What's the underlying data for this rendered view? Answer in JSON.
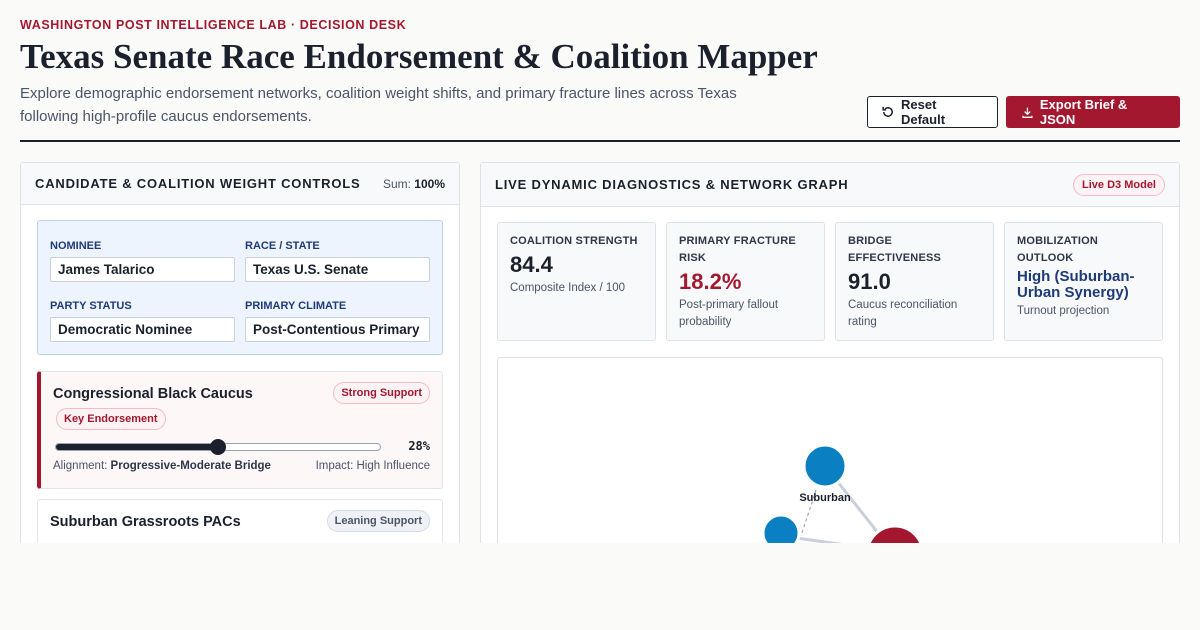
{
  "header": {
    "kicker": "WASHINGTON POST INTELLIGENCE LAB · DECISION DESK",
    "title": "Texas Senate Race Endorsement & Coalition Mapper",
    "subtitle": "Explore demographic endorsement networks, coalition weight shifts, and primary fracture lines across Texas following high-profile caucus endorsements.",
    "reset_label": "Reset Default",
    "export_label": "Export Brief & JSON"
  },
  "controls": {
    "title": "CANDIDATE & COALITION WEIGHT CONTROLS",
    "sum_label": "Sum:",
    "sum_value": "100%",
    "fields": {
      "nominee_label": "NOMINEE",
      "nominee_value": "James Talarico",
      "race_label": "RACE / STATE",
      "race_value": "Texas U.S. Senate",
      "party_label": "PARTY STATUS",
      "party_value": "Democratic Nominee",
      "climate_label": "PRIMARY CLIMATE",
      "climate_value": "Post-Contentious Primary"
    },
    "coalitions": [
      {
        "name": "Congressional Black Caucus",
        "support": "Strong Support",
        "tag": "Key Endorsement",
        "weight": 28,
        "weight_label": "28%",
        "alignment_label": "Alignment:",
        "alignment": "Progressive-Moderate Bridge",
        "impact": "Impact: High Influence"
      },
      {
        "name": "Suburban Grassroots PACs",
        "support": "Leaning Support"
      }
    ]
  },
  "diagnostics": {
    "title": "LIVE DYNAMIC DIAGNOSTICS & NETWORK GRAPH",
    "badge": "Live D3 Model",
    "metrics": [
      {
        "label": "COALITION STRENGTH",
        "value": "84.4",
        "sub": "Composite Index / 100"
      },
      {
        "label": "PRIMARY FRACTURE RISK",
        "value": "18.2%",
        "sub": "Post-primary fallout probability"
      },
      {
        "label": "BRIDGE EFFECTIVENESS",
        "value": "91.0",
        "sub": "Caucus reconciliation rating"
      },
      {
        "label": "MOBILIZATION OUTLOOK",
        "value": "High (Suburban-Urban Synergy)",
        "sub": "Turnout projection"
      }
    ],
    "graph": {
      "node_label": "Suburban",
      "colors": {
        "blue": "#0a7fc2",
        "red": "#a3182e",
        "edge": "#c7d0db"
      }
    }
  },
  "colors": {
    "accent": "#a3182e",
    "navy": "#1e3a78",
    "ink": "#1a202c"
  }
}
